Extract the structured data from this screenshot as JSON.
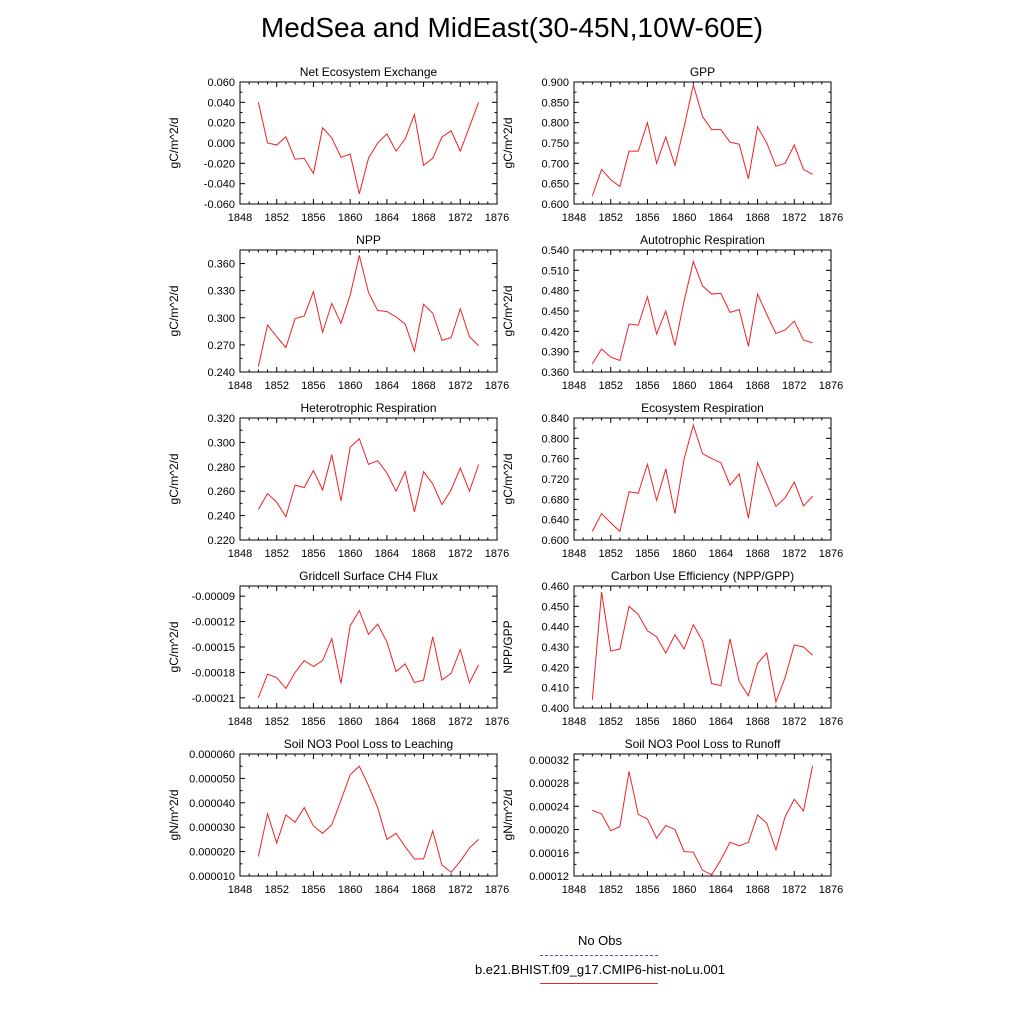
{
  "page_title": "MedSea and MidEast(30-45N,10W-60E)",
  "legend": {
    "items": [
      {
        "label": "No Obs",
        "color": "#5555cc",
        "dash": true
      },
      {
        "label": "b.e21.BHIST.f09_g17.CMIP6-hist-noLu.001",
        "color": "#ee2222",
        "dash": false
      }
    ]
  },
  "chart_data": [
    {
      "type": "line",
      "title": "Net Ecosystem Exchange",
      "ylabel": "gC/m^2/d",
      "xlim": [
        1848,
        1876
      ],
      "x_ticks": [
        "1848",
        "1852",
        "1856",
        "1860",
        "1864",
        "1868",
        "1872",
        "1876"
      ],
      "ylim": [
        -0.06,
        0.06
      ],
      "y_ticks": [
        "-0.060",
        "-0.040",
        "-0.020",
        "0.000",
        "0.020",
        "0.040",
        "0.060"
      ],
      "series": [
        {
          "x": [
            1850,
            1851,
            1852,
            1853,
            1854,
            1855,
            1856,
            1857,
            1858,
            1859,
            1860,
            1861,
            1862,
            1863,
            1864,
            1865,
            1866,
            1867,
            1868,
            1869,
            1870,
            1871,
            1872,
            1873,
            1874
          ],
          "y": [
            0.04,
            0.0,
            -0.002,
            0.006,
            -0.016,
            -0.015,
            -0.03,
            0.015,
            0.005,
            -0.014,
            -0.011,
            -0.05,
            -0.015,
            0.0,
            0.009,
            -0.008,
            0.004,
            0.028,
            -0.022,
            -0.015,
            0.006,
            0.012,
            -0.008,
            0.016,
            0.04
          ]
        }
      ]
    },
    {
      "type": "line",
      "title": "GPP",
      "ylabel": "gC/m^2/d",
      "xlim": [
        1848,
        1876
      ],
      "x_ticks": [
        "1848",
        "1852",
        "1856",
        "1860",
        "1864",
        "1868",
        "1872",
        "1876"
      ],
      "ylim": [
        0.6,
        0.9
      ],
      "y_ticks": [
        "0.600",
        "0.650",
        "0.700",
        "0.750",
        "0.800",
        "0.850",
        "0.900"
      ],
      "series": [
        {
          "x": [
            1850,
            1851,
            1852,
            1853,
            1854,
            1855,
            1856,
            1857,
            1858,
            1859,
            1860,
            1861,
            1862,
            1863,
            1864,
            1865,
            1866,
            1867,
            1868,
            1869,
            1870,
            1871,
            1872,
            1873,
            1874
          ],
          "y": [
            0.62,
            0.685,
            0.66,
            0.643,
            0.73,
            0.73,
            0.8,
            0.7,
            0.765,
            0.695,
            0.79,
            0.893,
            0.815,
            0.783,
            0.783,
            0.752,
            0.747,
            0.662,
            0.79,
            0.75,
            0.693,
            0.7,
            0.745,
            0.685,
            0.673
          ]
        }
      ]
    },
    {
      "type": "line",
      "title": "NPP",
      "ylabel": "gC/m^2/d",
      "xlim": [
        1848,
        1876
      ],
      "x_ticks": [
        "1848",
        "1852",
        "1856",
        "1860",
        "1864",
        "1868",
        "1872",
        "1876"
      ],
      "ylim": [
        0.24,
        0.375
      ],
      "y_ticks": [
        "0.240",
        "0.270",
        "0.300",
        "0.330",
        "0.360"
      ],
      "series": [
        {
          "x": [
            1850,
            1851,
            1852,
            1853,
            1854,
            1855,
            1856,
            1857,
            1858,
            1859,
            1860,
            1861,
            1862,
            1863,
            1864,
            1865,
            1866,
            1867,
            1868,
            1869,
            1870,
            1871,
            1872,
            1873,
            1874
          ],
          "y": [
            0.246,
            0.292,
            0.279,
            0.267,
            0.299,
            0.302,
            0.329,
            0.284,
            0.316,
            0.294,
            0.325,
            0.369,
            0.328,
            0.308,
            0.307,
            0.301,
            0.293,
            0.263,
            0.315,
            0.305,
            0.275,
            0.278,
            0.31,
            0.279,
            0.269
          ]
        }
      ]
    },
    {
      "type": "line",
      "title": "Autotrophic Respiration",
      "ylabel": "gC/m^2/d",
      "xlim": [
        1848,
        1876
      ],
      "x_ticks": [
        "1848",
        "1852",
        "1856",
        "1860",
        "1864",
        "1868",
        "1872",
        "1876"
      ],
      "ylim": [
        0.36,
        0.54
      ],
      "y_ticks": [
        "0.360",
        "0.390",
        "0.420",
        "0.450",
        "0.480",
        "0.510",
        "0.540"
      ],
      "series": [
        {
          "x": [
            1850,
            1851,
            1852,
            1853,
            1854,
            1855,
            1856,
            1857,
            1858,
            1859,
            1860,
            1861,
            1862,
            1863,
            1864,
            1865,
            1866,
            1867,
            1868,
            1869,
            1870,
            1871,
            1872,
            1873,
            1874
          ],
          "y": [
            0.372,
            0.394,
            0.382,
            0.377,
            0.431,
            0.429,
            0.471,
            0.416,
            0.45,
            0.399,
            0.465,
            0.523,
            0.487,
            0.475,
            0.476,
            0.448,
            0.452,
            0.398,
            0.475,
            0.445,
            0.417,
            0.422,
            0.435,
            0.407,
            0.403
          ]
        }
      ]
    },
    {
      "type": "line",
      "title": "Heterotrophic Respiration",
      "ylabel": "gC/m^2/d",
      "xlim": [
        1848,
        1876
      ],
      "x_ticks": [
        "1848",
        "1852",
        "1856",
        "1860",
        "1864",
        "1868",
        "1872",
        "1876"
      ],
      "ylim": [
        0.22,
        0.32
      ],
      "y_ticks": [
        "0.220",
        "0.240",
        "0.260",
        "0.280",
        "0.300",
        "0.320"
      ],
      "series": [
        {
          "x": [
            1850,
            1851,
            1852,
            1853,
            1854,
            1855,
            1856,
            1857,
            1858,
            1859,
            1860,
            1861,
            1862,
            1863,
            1864,
            1865,
            1866,
            1867,
            1868,
            1869,
            1870,
            1871,
            1872,
            1873,
            1874
          ],
          "y": [
            0.245,
            0.258,
            0.251,
            0.239,
            0.265,
            0.263,
            0.277,
            0.261,
            0.29,
            0.252,
            0.296,
            0.303,
            0.282,
            0.285,
            0.275,
            0.26,
            0.276,
            0.243,
            0.276,
            0.266,
            0.249,
            0.261,
            0.279,
            0.26,
            0.282
          ]
        }
      ]
    },
    {
      "type": "line",
      "title": "Ecosystem Respiration",
      "ylabel": "gC/m^2/d",
      "xlim": [
        1848,
        1876
      ],
      "x_ticks": [
        "1848",
        "1852",
        "1856",
        "1860",
        "1864",
        "1868",
        "1872",
        "1876"
      ],
      "ylim": [
        0.6,
        0.84
      ],
      "y_ticks": [
        "0.600",
        "0.640",
        "0.680",
        "0.720",
        "0.760",
        "0.800",
        "0.840"
      ],
      "series": [
        {
          "x": [
            1850,
            1851,
            1852,
            1853,
            1854,
            1855,
            1856,
            1857,
            1858,
            1859,
            1860,
            1861,
            1862,
            1863,
            1864,
            1865,
            1866,
            1867,
            1868,
            1869,
            1870,
            1871,
            1872,
            1873,
            1874
          ],
          "y": [
            0.617,
            0.652,
            0.634,
            0.617,
            0.695,
            0.692,
            0.749,
            0.678,
            0.74,
            0.652,
            0.76,
            0.826,
            0.77,
            0.76,
            0.752,
            0.708,
            0.73,
            0.643,
            0.752,
            0.71,
            0.666,
            0.683,
            0.714,
            0.667,
            0.686
          ]
        }
      ]
    },
    {
      "type": "line",
      "title": "Gridcell Surface CH4 Flux",
      "ylabel": "gC/m^2/d",
      "xlim": [
        1848,
        1876
      ],
      "x_ticks": [
        "1848",
        "1852",
        "1856",
        "1860",
        "1864",
        "1868",
        "1872",
        "1876"
      ],
      "ylim": [
        -0.000222,
        -7.8e-05
      ],
      "y_ticks": [
        "-0.00021",
        "-0.00018",
        "-0.00015",
        "-0.00012",
        "-0.00009"
      ],
      "series": [
        {
          "x": [
            1850,
            1851,
            1852,
            1853,
            1854,
            1855,
            1856,
            1857,
            1858,
            1859,
            1860,
            1861,
            1862,
            1863,
            1864,
            1865,
            1866,
            1867,
            1868,
            1869,
            1870,
            1871,
            1872,
            1873,
            1874
          ],
          "y": [
            -0.00021,
            -0.000182,
            -0.000186,
            -0.000199,
            -0.00018,
            -0.000166,
            -0.000173,
            -0.000166,
            -0.00014,
            -0.000193,
            -0.000125,
            -0.000107,
            -0.000135,
            -0.000123,
            -0.000144,
            -0.000179,
            -0.00017,
            -0.000192,
            -0.000189,
            -0.000138,
            -0.000189,
            -0.000181,
            -0.000153,
            -0.000192,
            -0.000171
          ]
        }
      ]
    },
    {
      "type": "line",
      "title": "Carbon Use Efficiency (NPP/GPP)",
      "ylabel": "NPP/GPP",
      "xlim": [
        1848,
        1876
      ],
      "x_ticks": [
        "1848",
        "1852",
        "1856",
        "1860",
        "1864",
        "1868",
        "1872",
        "1876"
      ],
      "ylim": [
        0.4,
        0.46
      ],
      "y_ticks": [
        "0.400",
        "0.410",
        "0.420",
        "0.430",
        "0.440",
        "0.450",
        "0.460"
      ],
      "series": [
        {
          "x": [
            1850,
            1851,
            1852,
            1853,
            1854,
            1855,
            1856,
            1857,
            1858,
            1859,
            1860,
            1861,
            1862,
            1863,
            1864,
            1865,
            1866,
            1867,
            1868,
            1869,
            1870,
            1871,
            1872,
            1873,
            1874
          ],
          "y": [
            0.404,
            0.457,
            0.428,
            0.429,
            0.45,
            0.446,
            0.438,
            0.435,
            0.427,
            0.436,
            0.429,
            0.441,
            0.433,
            0.412,
            0.411,
            0.434,
            0.413,
            0.406,
            0.422,
            0.427,
            0.403,
            0.415,
            0.431,
            0.43,
            0.426
          ]
        }
      ]
    },
    {
      "type": "line",
      "title": "Soil NO3 Pool Loss to Leaching",
      "ylabel": "gN/m^2/d",
      "xlim": [
        1848,
        1876
      ],
      "x_ticks": [
        "1848",
        "1852",
        "1856",
        "1860",
        "1864",
        "1868",
        "1872",
        "1876"
      ],
      "ylim": [
        1e-05,
        6e-05
      ],
      "y_ticks": [
        "0.000010",
        "0.000020",
        "0.000030",
        "0.000040",
        "0.000050",
        "0.000060"
      ],
      "series": [
        {
          "x": [
            1850,
            1851,
            1852,
            1853,
            1854,
            1855,
            1856,
            1857,
            1858,
            1859,
            1860,
            1861,
            1862,
            1863,
            1864,
            1865,
            1866,
            1867,
            1868,
            1869,
            1870,
            1871,
            1872,
            1873,
            1874
          ],
          "y": [
            1.8e-05,
            3.55e-05,
            2.35e-05,
            3.5e-05,
            3.2e-05,
            3.8e-05,
            3.05e-05,
            2.75e-05,
            3.1e-05,
            4.1e-05,
            5.15e-05,
            5.5e-05,
            4.7e-05,
            3.8e-05,
            2.5e-05,
            2.75e-05,
            2.2e-05,
            1.7e-05,
            1.7e-05,
            2.85e-05,
            1.45e-05,
            1.15e-05,
            1.6e-05,
            2.15e-05,
            2.5e-05
          ]
        }
      ]
    },
    {
      "type": "line",
      "title": "Soil NO3 Pool Loss to Runoff",
      "ylabel": "gN/m^2/d",
      "xlim": [
        1848,
        1876
      ],
      "x_ticks": [
        "1848",
        "1852",
        "1856",
        "1860",
        "1864",
        "1868",
        "1872",
        "1876"
      ],
      "ylim": [
        0.00012,
        0.00033
      ],
      "y_ticks": [
        "0.00012",
        "0.00016",
        "0.00020",
        "0.00024",
        "0.00028",
        "0.00032"
      ],
      "series": [
        {
          "x": [
            1850,
            1851,
            1852,
            1853,
            1854,
            1855,
            1856,
            1857,
            1858,
            1859,
            1860,
            1861,
            1862,
            1863,
            1864,
            1865,
            1866,
            1867,
            1868,
            1869,
            1870,
            1871,
            1872,
            1873,
            1874
          ],
          "y": [
            0.000233,
            0.000227,
            0.000198,
            0.000205,
            0.0003,
            0.000226,
            0.000218,
            0.000185,
            0.000207,
            0.0002,
            0.000162,
            0.000161,
            0.00013,
            0.000122,
            0.000148,
            0.000178,
            0.000172,
            0.000178,
            0.000225,
            0.000211,
            0.000165,
            0.000222,
            0.000252,
            0.000232,
            0.00031
          ]
        }
      ]
    }
  ]
}
